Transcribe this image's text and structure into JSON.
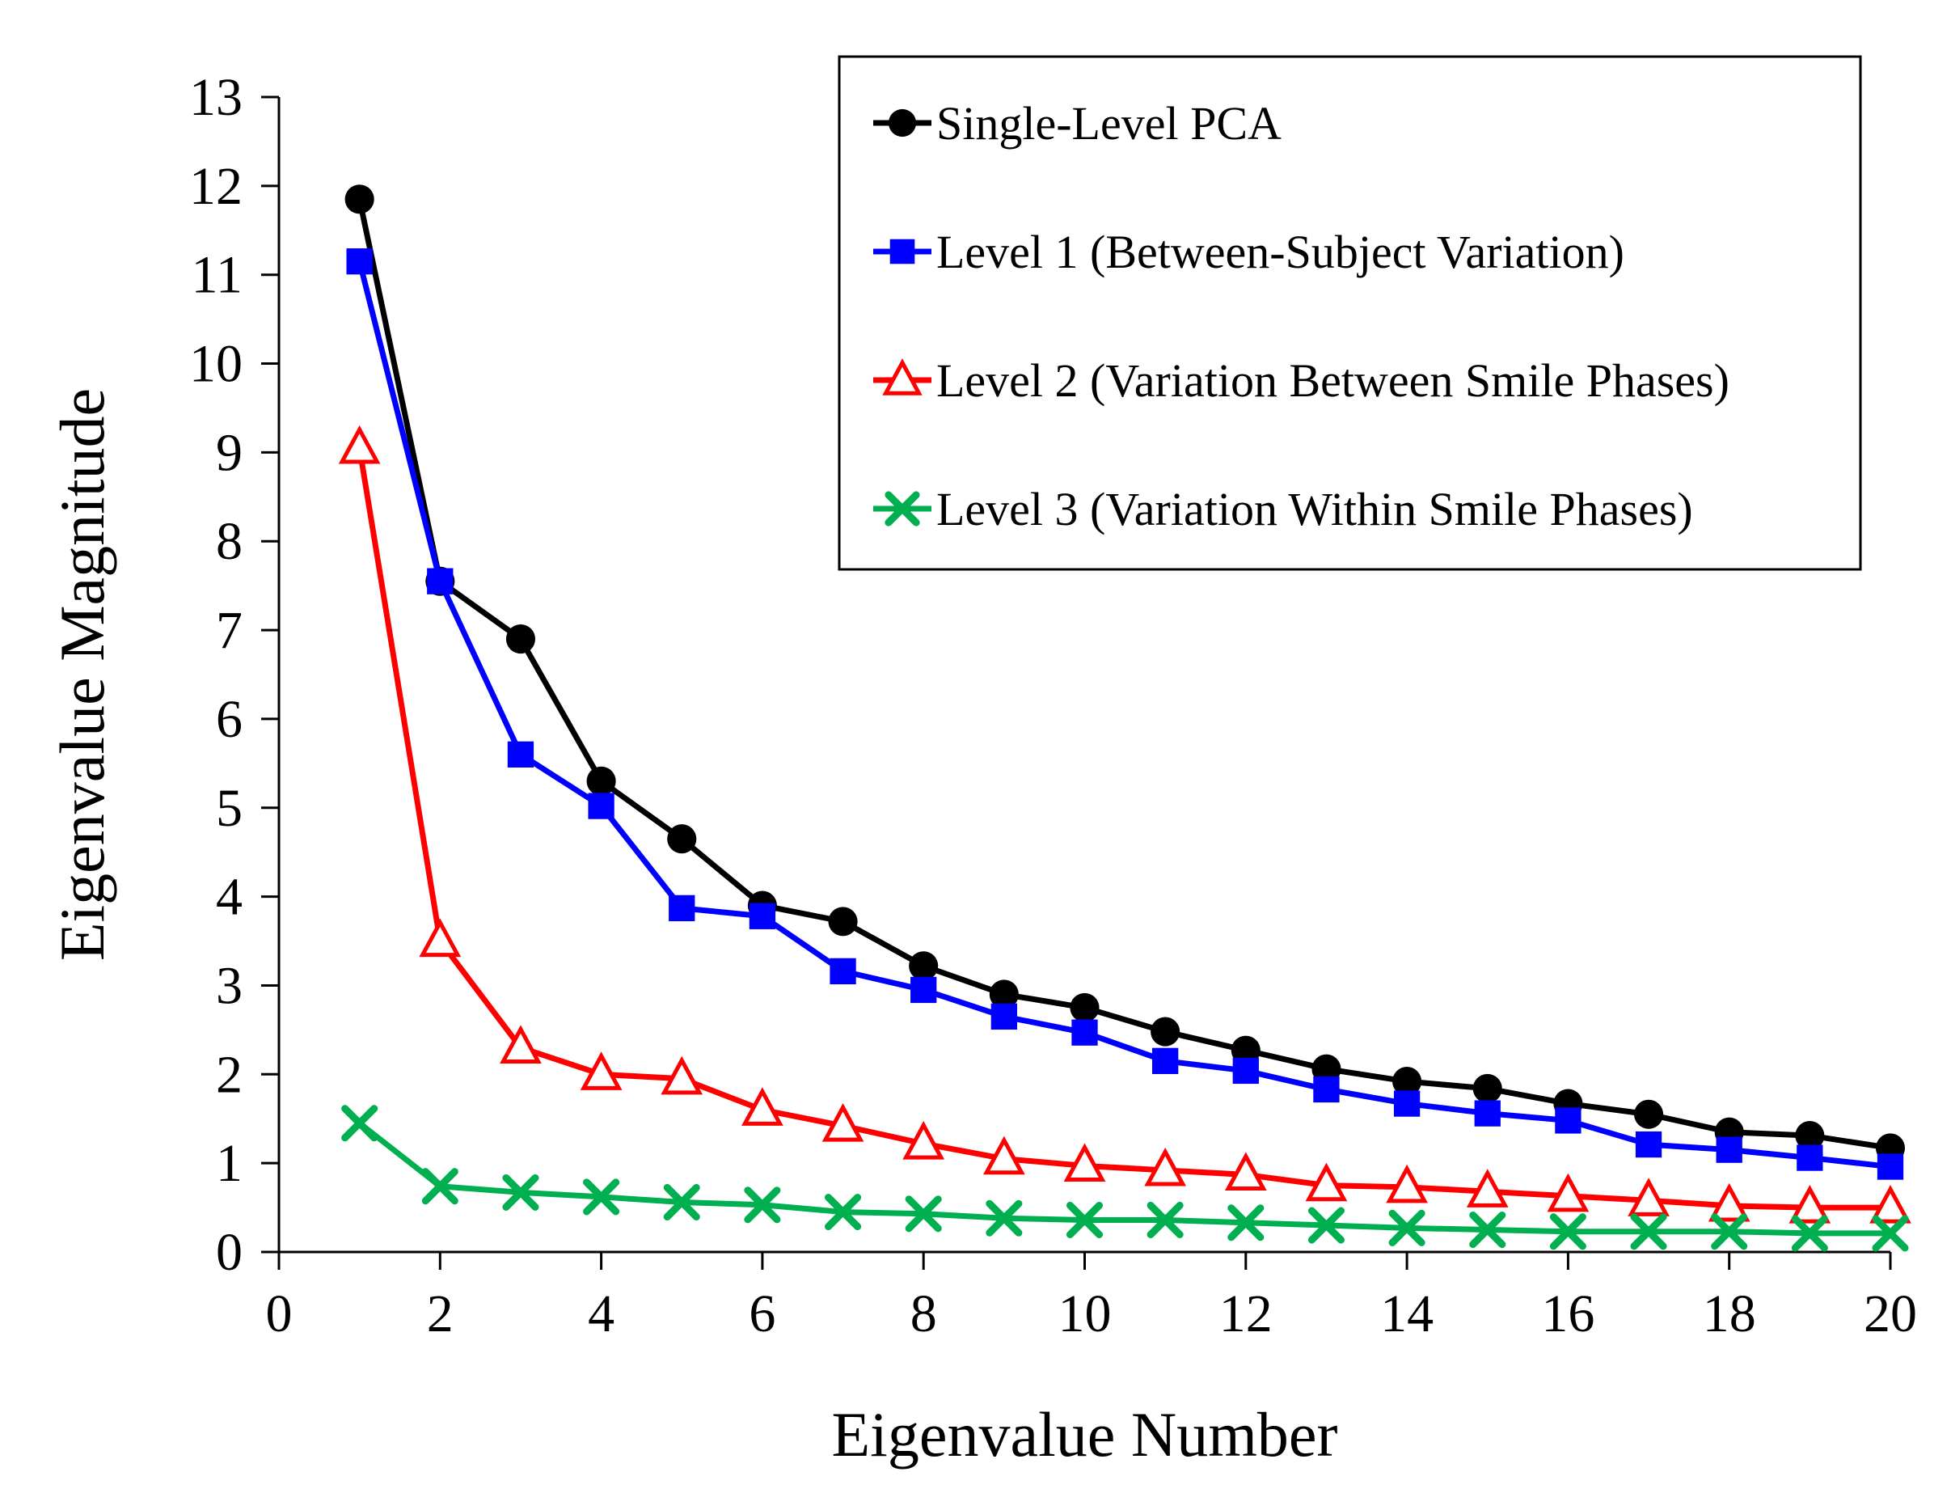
{
  "chart_data": {
    "type": "line",
    "title": "",
    "xlabel": "Eigenvalue Number",
    "ylabel": "Eigenvalue Magnitude",
    "xlim": [
      0,
      20
    ],
    "ylim": [
      0,
      13
    ],
    "xticks": [
      0,
      2,
      4,
      6,
      8,
      10,
      12,
      14,
      16,
      18,
      20
    ],
    "yticks": [
      0,
      1,
      2,
      3,
      4,
      5,
      6,
      7,
      8,
      9,
      10,
      11,
      12,
      13
    ],
    "grid": false,
    "legend_position": "top-right",
    "x": [
      1,
      2,
      3,
      4,
      5,
      6,
      7,
      8,
      9,
      10,
      11,
      12,
      13,
      14,
      15,
      16,
      17,
      18,
      19,
      20
    ],
    "series": [
      {
        "name": "Single-Level PCA",
        "color": "#000000",
        "marker": "circle",
        "values": [
          11.85,
          7.55,
          6.9,
          5.3,
          4.65,
          3.9,
          3.72,
          3.22,
          2.9,
          2.75,
          2.48,
          2.27,
          2.06,
          1.92,
          1.84,
          1.67,
          1.55,
          1.35,
          1.31,
          1.17
        ]
      },
      {
        "name": "Level 1 (Between-Subject Variation)",
        "color": "#0000ff",
        "marker": "square",
        "values": [
          11.15,
          7.55,
          5.6,
          5.02,
          3.87,
          3.78,
          3.16,
          2.95,
          2.65,
          2.47,
          2.15,
          2.04,
          1.83,
          1.67,
          1.56,
          1.48,
          1.21,
          1.15,
          1.06,
          0.96
        ]
      },
      {
        "name": "Level 2 (Variation Between Smile Phases)",
        "color": "#ff0000",
        "marker": "triangle-open",
        "values": [
          9.05,
          3.5,
          2.3,
          2.0,
          1.95,
          1.6,
          1.42,
          1.22,
          1.05,
          0.97,
          0.92,
          0.87,
          0.75,
          0.73,
          0.68,
          0.63,
          0.58,
          0.52,
          0.5,
          0.5
        ]
      },
      {
        "name": "Level 3 (Variation Within Smile Phases)",
        "color": "#00b050",
        "marker": "x",
        "values": [
          1.45,
          0.74,
          0.67,
          0.62,
          0.56,
          0.53,
          0.45,
          0.43,
          0.38,
          0.36,
          0.36,
          0.33,
          0.3,
          0.27,
          0.25,
          0.23,
          0.23,
          0.23,
          0.21,
          0.21
        ]
      }
    ]
  }
}
